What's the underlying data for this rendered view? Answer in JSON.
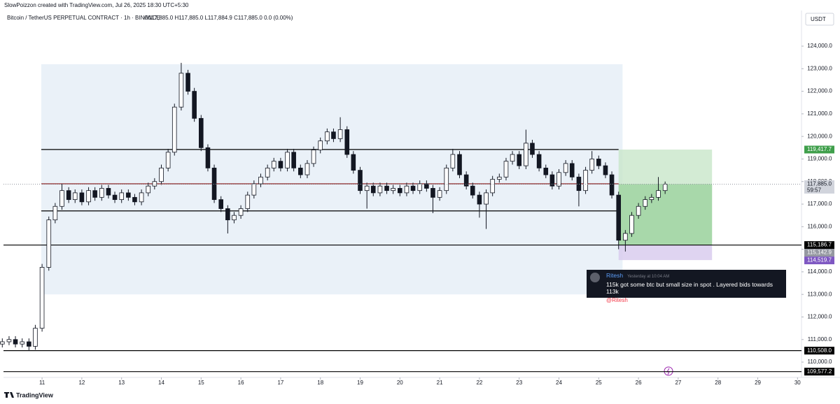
{
  "chart_data": {
    "type": "candlestick",
    "credit": "SlowPoizzon created with TradingView.com, Jul 26, 2025 18:30 UTC+5:30",
    "symbol": "Bitcoin / TetherUS PERPETUAL CONTRACT · 1h · BINANCE",
    "ohlc_legend": "O117,885.0 H117,885.0 L117,884.9 C117,885.0 0.0 (0.00%)",
    "currency": "USDT",
    "footer": "TradingView",
    "up_color": "#ffffff",
    "down_color": "#131722",
    "xlim": [
      10.03,
      30.1
    ],
    "ylim": [
      109320,
      125580
    ],
    "xticks": [
      11,
      12,
      13,
      14,
      15,
      16,
      17,
      18,
      19,
      20,
      21,
      22,
      23,
      24,
      25,
      26,
      27,
      28,
      29,
      30
    ],
    "yticks": [
      {
        "value": 110000,
        "label": "110,000.0"
      },
      {
        "value": 111000,
        "label": "111,000.0"
      },
      {
        "value": 112000,
        "label": "112,000.0"
      },
      {
        "value": 113000,
        "label": "113,000.0"
      },
      {
        "value": 114000,
        "label": "114,000.0"
      },
      {
        "value": 115000,
        "label": "115,000.0"
      },
      {
        "value": 116000,
        "label": "116,000.0"
      },
      {
        "value": 117000,
        "label": "117,000.0"
      },
      {
        "value": 118000,
        "label": "118,000.0"
      },
      {
        "value": 119000,
        "label": "119,000.0"
      },
      {
        "value": 120000,
        "label": "120,000.0"
      },
      {
        "value": 121000,
        "label": "121,000.0"
      },
      {
        "value": 122000,
        "label": "122,000.0"
      },
      {
        "value": 123000,
        "label": "123,000.0"
      },
      {
        "value": 124000,
        "label": "124,000.0"
      }
    ],
    "x": [
      10,
      10.17,
      10.33,
      10.5,
      10.67,
      10.83,
      11,
      11.17,
      11.33,
      11.5,
      11.67,
      11.83,
      12,
      12.17,
      12.33,
      12.5,
      12.67,
      12.83,
      13,
      13.17,
      13.33,
      13.5,
      13.67,
      13.83,
      14,
      14.17,
      14.33,
      14.5,
      14.67,
      14.83,
      15,
      15.17,
      15.33,
      15.5,
      15.67,
      15.83,
      16,
      16.17,
      16.33,
      16.5,
      16.67,
      16.83,
      17,
      17.17,
      17.33,
      17.5,
      17.67,
      17.83,
      18,
      18.17,
      18.33,
      18.5,
      18.67,
      18.83,
      19,
      19.17,
      19.33,
      19.5,
      19.67,
      19.83,
      20,
      20.17,
      20.33,
      20.5,
      20.67,
      20.83,
      21,
      21.17,
      21.33,
      21.5,
      21.67,
      21.83,
      22,
      22.17,
      22.33,
      22.5,
      22.67,
      22.83,
      23,
      23.17,
      23.33,
      23.5,
      23.67,
      23.83,
      24,
      24.17,
      24.33,
      24.5,
      24.67,
      24.83,
      25,
      25.17,
      25.33,
      25.5,
      25.67,
      25.83,
      26,
      26.17,
      26.33,
      26.5,
      26.67
    ],
    "open": [
      110800,
      110900,
      111000,
      110800,
      110900,
      110700,
      111500,
      114200,
      116300,
      116900,
      117600,
      117200,
      117500,
      117100,
      117600,
      117300,
      117700,
      117400,
      117200,
      117500,
      117300,
      117100,
      117500,
      117800,
      118000,
      118600,
      119300,
      121300,
      122800,
      122000,
      120800,
      119500,
      118600,
      117200,
      116800,
      116300,
      116500,
      116800,
      117400,
      117900,
      118200,
      118600,
      118900,
      118600,
      119300,
      118600,
      118300,
      118800,
      119400,
      119800,
      120200,
      119900,
      120300,
      119200,
      118500,
      117600,
      117800,
      117500,
      117800,
      117600,
      117700,
      117500,
      117800,
      117600,
      117900,
      117700,
      117300,
      117600,
      118600,
      119200,
      118300,
      117800,
      117400,
      117000,
      117500,
      118100,
      118200,
      118900,
      119200,
      118700,
      119700,
      119200,
      118600,
      118300,
      117800,
      118400,
      118800,
      118200,
      117600,
      118500,
      119000,
      118700,
      118300,
      117400,
      115400,
      115700,
      116500,
      116900,
      117200,
      117300,
      117600
    ],
    "high": [
      111050,
      111150,
      111150,
      111050,
      111050,
      111650,
      114350,
      116450,
      117050,
      117900,
      117750,
      117650,
      117650,
      117750,
      117750,
      117850,
      117850,
      117550,
      117650,
      117650,
      117450,
      117650,
      117950,
      118150,
      118750,
      119450,
      121450,
      123260,
      122950,
      122150,
      120950,
      119650,
      118750,
      117350,
      116950,
      116650,
      116950,
      117550,
      118050,
      118350,
      118750,
      119050,
      119050,
      119450,
      119450,
      118750,
      118950,
      119550,
      119950,
      120350,
      120350,
      120850,
      120450,
      119350,
      118650,
      117950,
      117950,
      117950,
      117950,
      117850,
      117850,
      117950,
      117950,
      118050,
      118050,
      117850,
      117750,
      118750,
      119450,
      119350,
      118450,
      117950,
      117550,
      117650,
      118250,
      118350,
      119050,
      119350,
      119350,
      120300,
      119850,
      119350,
      118750,
      118450,
      118550,
      118950,
      118950,
      118350,
      118650,
      119350,
      119150,
      118850,
      118450,
      117550,
      115850,
      116650,
      117050,
      117350,
      117450,
      118200,
      118000
    ],
    "low": [
      110650,
      110750,
      110650,
      110650,
      110500,
      110550,
      111350,
      114050,
      116150,
      116750,
      117050,
      117050,
      116950,
      116950,
      117150,
      117150,
      117250,
      117050,
      117050,
      117150,
      116950,
      116950,
      117350,
      117650,
      117850,
      118450,
      119150,
      121150,
      121850,
      120650,
      119350,
      118450,
      117050,
      116650,
      115700,
      116150,
      116350,
      116650,
      117250,
      117750,
      118050,
      118450,
      118450,
      118450,
      118450,
      118150,
      118150,
      118650,
      119250,
      119650,
      119750,
      119750,
      119050,
      118350,
      117450,
      116800,
      117350,
      117350,
      117450,
      117450,
      117350,
      117350,
      117450,
      117450,
      117550,
      116600,
      117150,
      117450,
      118450,
      118150,
      117650,
      117250,
      116400,
      115900,
      117350,
      117950,
      118050,
      118750,
      118550,
      118550,
      119050,
      118450,
      118150,
      117650,
      117650,
      118250,
      118050,
      116900,
      117450,
      118350,
      118550,
      118150,
      117250,
      115000,
      114900,
      115550,
      116350,
      116750,
      117050,
      117150,
      117450
    ],
    "close": [
      110900,
      111000,
      110800,
      110900,
      110700,
      111500,
      114200,
      116300,
      116900,
      117600,
      117200,
      117500,
      117100,
      117600,
      117300,
      117700,
      117400,
      117200,
      117500,
      117300,
      117100,
      117500,
      117800,
      118000,
      118600,
      119300,
      121300,
      122800,
      122000,
      120800,
      119500,
      118600,
      117200,
      116800,
      116300,
      116500,
      116800,
      117400,
      117900,
      118200,
      118600,
      118900,
      118600,
      119300,
      118600,
      118300,
      118800,
      119400,
      119800,
      120200,
      119900,
      120300,
      119200,
      118500,
      117600,
      117800,
      117500,
      117800,
      117600,
      117700,
      117500,
      117800,
      117600,
      117900,
      117700,
      117300,
      117600,
      118600,
      119200,
      118300,
      117800,
      117400,
      117000,
      117500,
      118100,
      118200,
      118900,
      119200,
      118700,
      119700,
      119200,
      118600,
      118300,
      117800,
      118400,
      118800,
      118200,
      117600,
      118500,
      119000,
      118700,
      118300,
      117400,
      115400,
      115700,
      116500,
      116900,
      117200,
      117300,
      117600,
      117885
    ],
    "range_box": {
      "x": [
        10.98,
        25.6
      ],
      "y": [
        113000,
        123200
      ],
      "color": "#e3ecf6"
    },
    "position": {
      "x": [
        25.5,
        27.85
      ],
      "target": 119417.7,
      "entry": 115186.7,
      "stop": 114519.7,
      "current": 117885.0
    },
    "levels": [
      {
        "value": 119420,
        "from": 10.98,
        "to": 25.5,
        "color": "#000000"
      },
      {
        "value": 117900,
        "from": 10.98,
        "to": 25.5,
        "color": "#8b1a1a"
      },
      {
        "value": 116700,
        "from": 10.98,
        "to": 25.5,
        "color": "#000000"
      },
      {
        "value": 115186.7,
        "color": "#000000"
      },
      {
        "value": 110508.0,
        "color": "#000000"
      },
      {
        "value": 109577.2,
        "color": "#000000"
      }
    ],
    "price_labels": [
      {
        "value": 119417.7,
        "label": "119,417.7",
        "bg": "#3f9f4b",
        "fg": "#ffffff"
      },
      {
        "value": 117885.0,
        "label": "117,885.0",
        "bg": "#d1d4dc",
        "fg": "#131722",
        "countdown": "59:57"
      },
      {
        "value": 115186.7,
        "label": "115,186.7",
        "bg": "#000000",
        "fg": "#ffffff"
      },
      {
        "value": 115142.9,
        "label": "115,142.9",
        "bg": "#9598a1",
        "fg": "#ffffff"
      },
      {
        "value": 114519.7,
        "label": "114,519.7",
        "bg": "#7e57c2",
        "fg": "#ffffff"
      },
      {
        "value": 110508.0,
        "label": "110,508.0",
        "bg": "#000000",
        "fg": "#ffffff"
      },
      {
        "value": 109577.2,
        "label": "109,577.2",
        "bg": "#000000",
        "fg": "#ffffff"
      }
    ],
    "comment": {
      "author": "Ritesh",
      "time": "Yesterday at 10:04 AM",
      "text": "115k got some btc but small size in spot . Layered bids towards 113k",
      "mention": "@Ritesh"
    }
  }
}
